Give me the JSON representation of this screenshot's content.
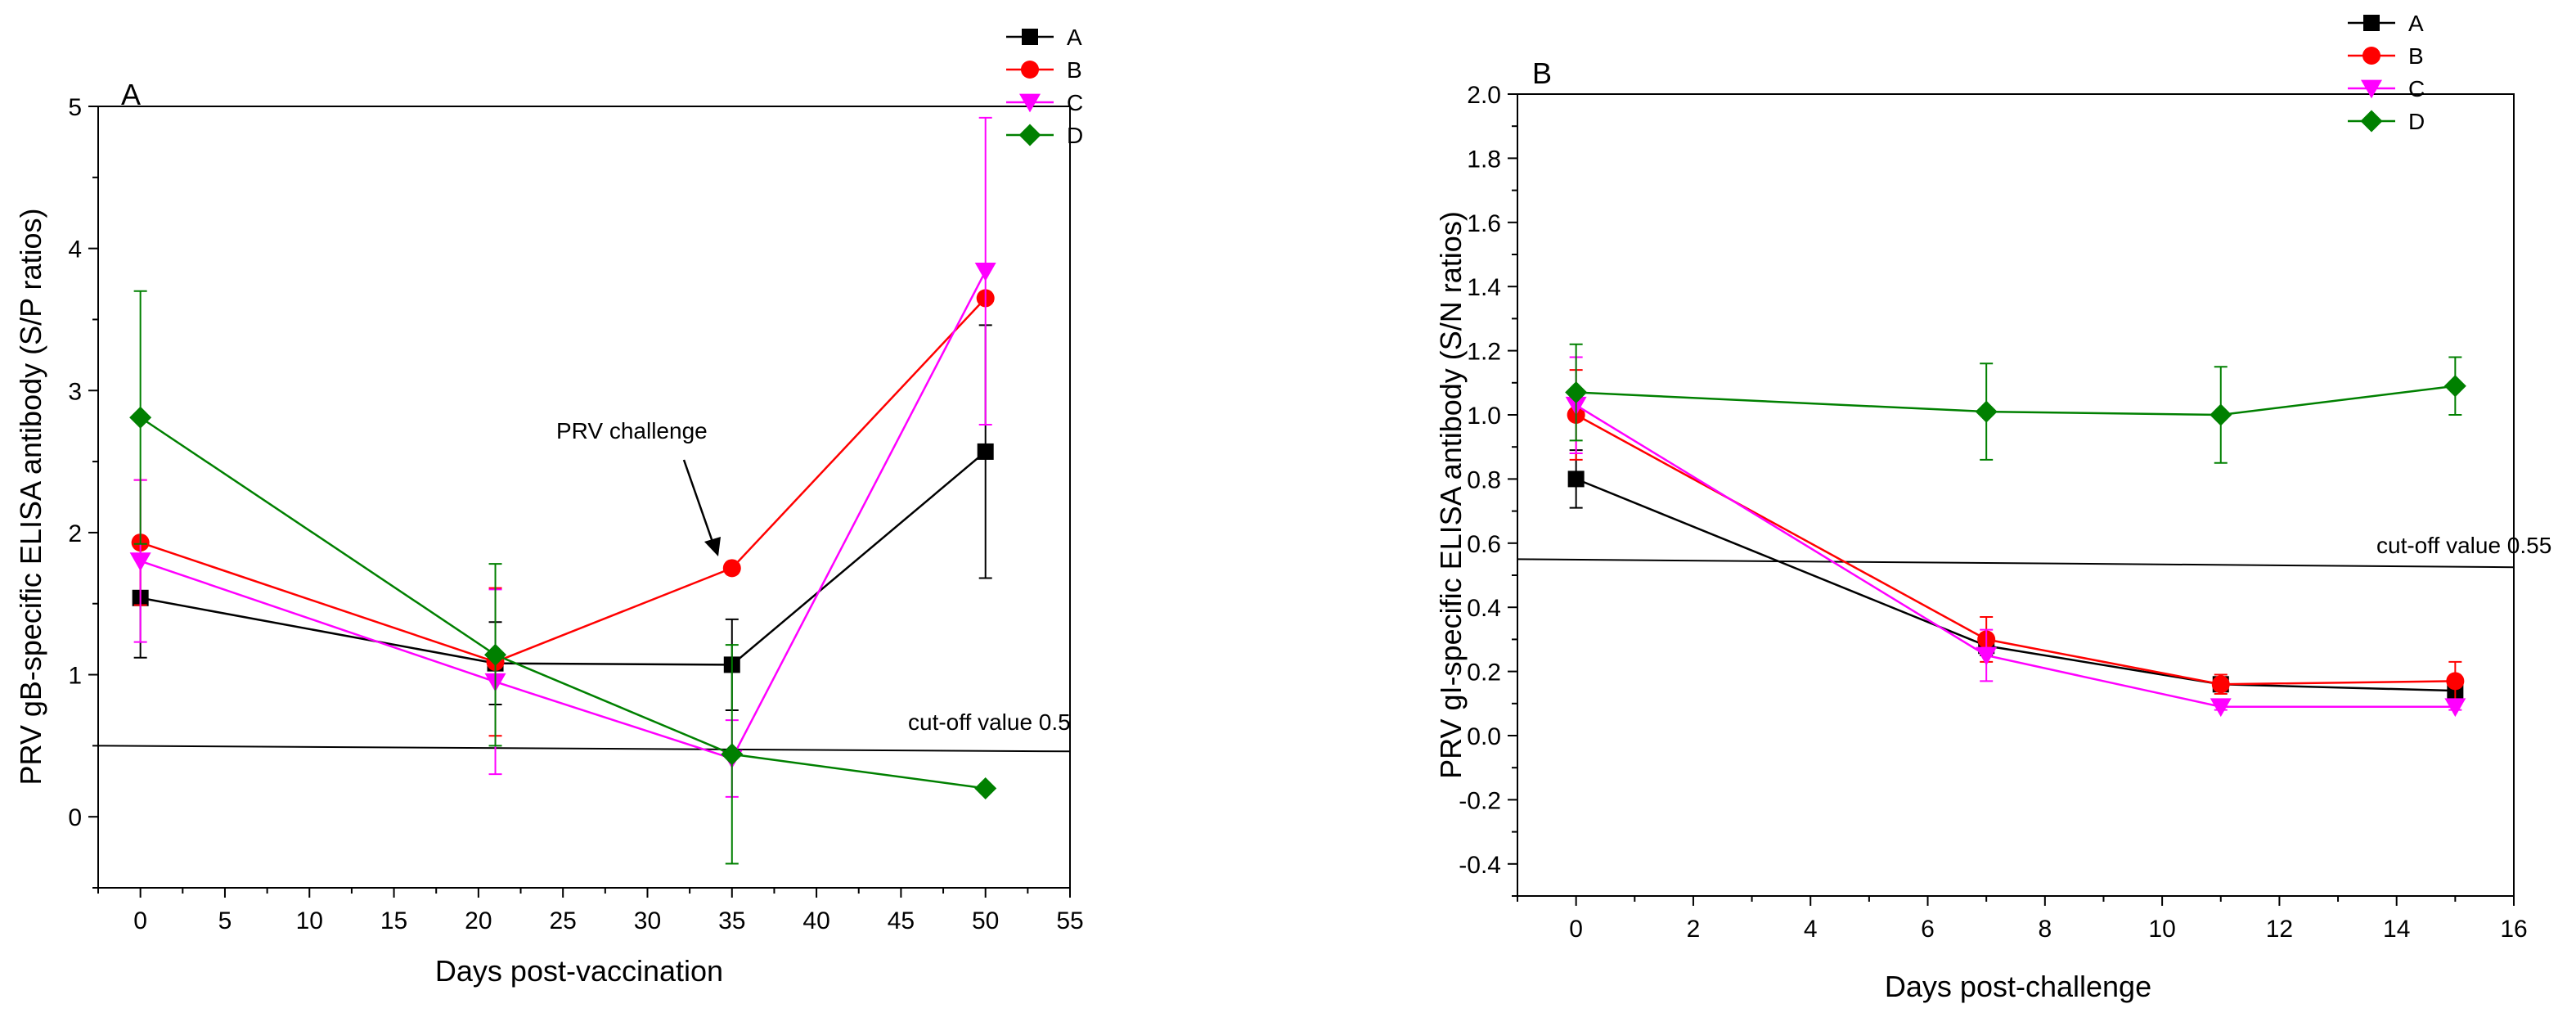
{
  "chart_data": [
    {
      "type": "line",
      "panel_label": "A",
      "xlabel": "Days post-vaccination",
      "ylabel": "PRV gB-specific ELISA antibody (S/P ratios)",
      "xlim": [
        -2.5,
        55
      ],
      "ylim": [
        -0.5,
        5
      ],
      "xticks": [
        "0",
        "5",
        "10",
        "15",
        "20",
        "25",
        "30",
        "35",
        "40",
        "45",
        "50",
        "55"
      ],
      "yticks": [
        "0",
        "1",
        "2",
        "3",
        "4",
        "5"
      ],
      "cutoff": {
        "label": "cut-off value 0.5",
        "x": [
          -2.5,
          55
        ],
        "y": [
          0.5,
          0.46
        ]
      },
      "annotation": {
        "text": "PRV challenge",
        "point_x": 35,
        "point_y": 1.75
      },
      "legend": [
        "A",
        "B",
        "C",
        "D"
      ],
      "series": [
        {
          "name": "A",
          "color": "#000000",
          "marker": "square",
          "x": [
            0,
            21,
            35,
            50
          ],
          "y": [
            1.54,
            1.08,
            1.07,
            2.57
          ],
          "err": [
            0.42,
            0.29,
            0.32,
            0.89
          ]
        },
        {
          "name": "B",
          "color": "#ff0000",
          "marker": "circle",
          "x": [
            0,
            21,
            35,
            50
          ],
          "y": [
            1.93,
            1.09,
            1.75,
            3.65
          ],
          "err": [
            0.44,
            0.52,
            0.0,
            0.0
          ]
        },
        {
          "name": "C",
          "color": "#ff00ff",
          "marker": "triangle-down",
          "x": [
            0,
            21,
            35,
            50
          ],
          "y": [
            1.8,
            0.95,
            0.41,
            3.84
          ],
          "err": [
            0.57,
            0.65,
            0.27,
            1.08
          ]
        },
        {
          "name": "D",
          "color": "#008000",
          "marker": "diamond",
          "x": [
            0,
            21,
            35,
            50
          ],
          "y": [
            2.81,
            1.14,
            0.44,
            0.2
          ],
          "err": [
            0.89,
            0.64,
            0.77,
            0.0
          ]
        }
      ]
    },
    {
      "type": "line",
      "panel_label": "B",
      "xlabel": "Days post-challenge",
      "ylabel": "PRV gI-specific ELISA antibody (S/N ratios)",
      "xlim": [
        -1,
        16
      ],
      "ylim": [
        -0.5,
        2.0
      ],
      "xticks": [
        "0",
        "2",
        "4",
        "6",
        "8",
        "10",
        "12",
        "14",
        "16"
      ],
      "yticks": [
        "-0.4",
        "-0.2",
        "0.0",
        "0.2",
        "0.4",
        "0.6",
        "0.8",
        "1.0",
        "1.2",
        "1.4",
        "1.6",
        "1.8",
        "2.0"
      ],
      "cutoff": {
        "label": "cut-off value 0.55",
        "x": [
          -1,
          16
        ],
        "y": [
          0.55,
          0.525
        ]
      },
      "legend": [
        "A",
        "B",
        "C",
        "D"
      ],
      "series": [
        {
          "name": "A",
          "color": "#000000",
          "marker": "square",
          "x": [
            0,
            7,
            11,
            15
          ],
          "y": [
            0.8,
            0.28,
            0.16,
            0.14
          ],
          "err": [
            0.09,
            0.03,
            0.02,
            0.02
          ]
        },
        {
          "name": "B",
          "color": "#ff0000",
          "marker": "circle",
          "x": [
            0,
            7,
            11,
            15
          ],
          "y": [
            1.0,
            0.3,
            0.16,
            0.17
          ],
          "err": [
            0.14,
            0.07,
            0.03,
            0.06
          ]
        },
        {
          "name": "C",
          "color": "#ff00ff",
          "marker": "triangle-down",
          "x": [
            0,
            7,
            11,
            15
          ],
          "y": [
            1.03,
            0.25,
            0.09,
            0.09
          ],
          "err": [
            0.15,
            0.08,
            0.01,
            0.01
          ]
        },
        {
          "name": "D",
          "color": "#008000",
          "marker": "diamond",
          "x": [
            0,
            7,
            11,
            15
          ],
          "y": [
            1.07,
            1.01,
            1.0,
            1.09
          ],
          "err": [
            0.15,
            0.15,
            0.15,
            0.09
          ]
        }
      ]
    }
  ]
}
